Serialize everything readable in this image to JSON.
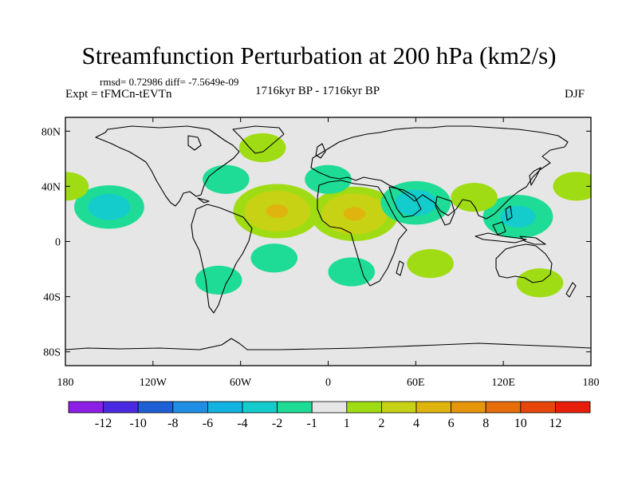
{
  "title": "Streamfunction Perturbation at 200 hPa (km2/s)",
  "stats": "rmsd= 0.72986  diff= -7.5649e-09",
  "experiment": "Expt = tFMCn-tEVTn",
  "period": "1716kyr BP - 1716kyr BP",
  "season": "DJF",
  "map": {
    "lat_ticks": [
      {
        "value": 80,
        "label": "80N"
      },
      {
        "value": 40,
        "label": "40N"
      },
      {
        "value": 0,
        "label": "0"
      },
      {
        "value": -40,
        "label": "40S"
      },
      {
        "value": -80,
        "label": "80S"
      }
    ],
    "lon_ticks": [
      {
        "value": -180,
        "label": "180"
      },
      {
        "value": -120,
        "label": "120W"
      },
      {
        "value": -60,
        "label": "60W"
      },
      {
        "value": 0,
        "label": "0"
      },
      {
        "value": 60,
        "label": "60E"
      },
      {
        "value": 120,
        "label": "120E"
      },
      {
        "value": 180,
        "label": "180"
      }
    ],
    "background_color": "#e6e6e6"
  },
  "colorbar": {
    "colors": [
      "#8c1ee6",
      "#4a2ae0",
      "#1f5fd6",
      "#1f8fe6",
      "#12b3e0",
      "#14cccc",
      "#1edc96",
      "#e6e6e6",
      "#a0dc14",
      "#c8d214",
      "#e0b40f",
      "#e6960a",
      "#e66e0a",
      "#e6460a",
      "#e61e0a"
    ],
    "labels": [
      "-12",
      "-10",
      "-8",
      "-6",
      "-4",
      "-2",
      "-1",
      "1",
      "2",
      "4",
      "6",
      "8",
      "10",
      "12"
    ]
  },
  "chart_data": {
    "type": "contour-map",
    "title": "Streamfunction Perturbation at 200 hPa (km2/s)",
    "units": "km2/s",
    "lon_range": [
      -180,
      180
    ],
    "lat_range": [
      -90,
      90
    ],
    "levels": [
      -12,
      -10,
      -8,
      -6,
      -4,
      -2,
      -1,
      1,
      2,
      4,
      6,
      8,
      10,
      12
    ],
    "anomalies": [
      {
        "name": "north-pacific-low",
        "lon": -150,
        "lat": 25,
        "sign": -1,
        "max_abs": 2.5
      },
      {
        "name": "north-atlantic-high",
        "lon": -35,
        "lat": 22,
        "sign": 1,
        "max_abs": 4
      },
      {
        "name": "saharan-high",
        "lon": 18,
        "lat": 20,
        "sign": 1,
        "max_abs": 4
      },
      {
        "name": "arabian-low",
        "lon": 60,
        "lat": 28,
        "sign": -1,
        "max_abs": 2.5
      },
      {
        "name": "west-pacific-low",
        "lon": 130,
        "lat": 18,
        "sign": -1,
        "max_abs": 2
      },
      {
        "name": "northeast-pacific-high",
        "lon": 170,
        "lat": 40,
        "sign": 1,
        "max_abs": 1.5
      },
      {
        "name": "east-atlantic-edge-high",
        "lon": -180,
        "lat": 40,
        "sign": 1,
        "max_abs": 1.5
      },
      {
        "name": "us-east-low",
        "lon": -70,
        "lat": 45,
        "sign": -1,
        "max_abs": 1.5
      },
      {
        "name": "greenland-high",
        "lon": -45,
        "lat": 68,
        "sign": 1,
        "max_abs": 1.5
      },
      {
        "name": "europe-low",
        "lon": 0,
        "lat": 45,
        "sign": -1,
        "max_abs": 1.2
      },
      {
        "name": "south-atlantic-low",
        "lon": -37,
        "lat": -12,
        "sign": -1,
        "max_abs": 1.5
      },
      {
        "name": "south-america-low",
        "lon": -75,
        "lat": -28,
        "sign": -1,
        "max_abs": 1.2
      },
      {
        "name": "southern-africa-low",
        "lon": 16,
        "lat": -22,
        "sign": -1,
        "max_abs": 1.2
      },
      {
        "name": "indian-ocean-high",
        "lon": 70,
        "lat": -16,
        "sign": 1,
        "max_abs": 1.2
      },
      {
        "name": "australia-high",
        "lon": 145,
        "lat": -30,
        "sign": 1,
        "max_abs": 1.2
      },
      {
        "name": "central-asia-high",
        "lon": 100,
        "lat": 32,
        "sign": 1,
        "max_abs": 1.1
      }
    ]
  }
}
